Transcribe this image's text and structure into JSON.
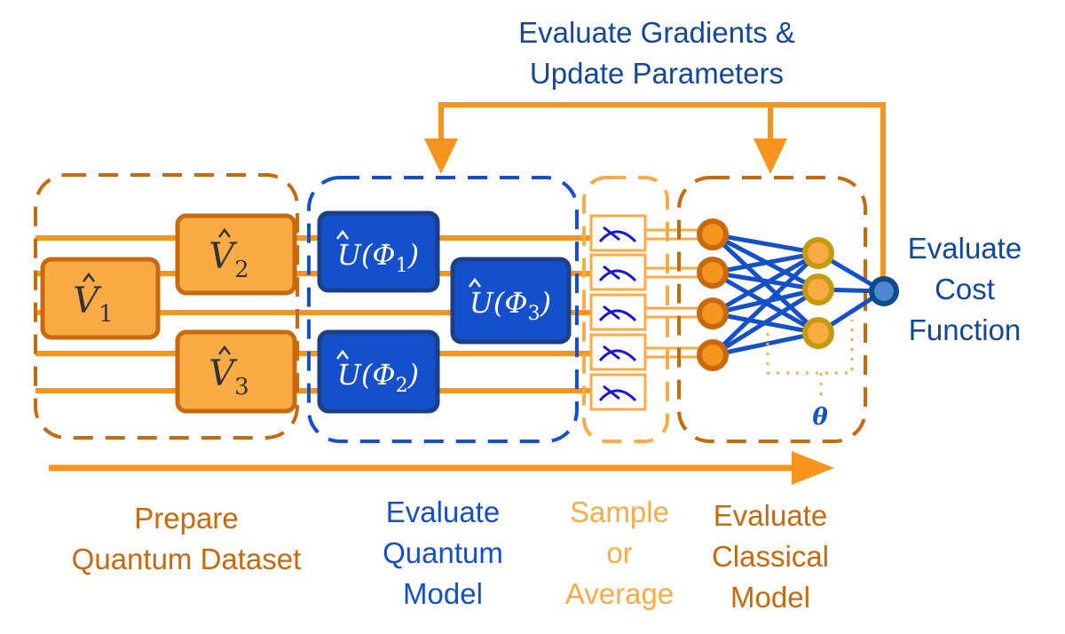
{
  "colors": {
    "orange": "#f7941d",
    "dark_orange": "#c8690e",
    "light_orange": "#fbab44",
    "blue": "#1450cc",
    "dark_blue": "#1d3f86",
    "label_blue": "#12489a",
    "gold": "#c59a0e"
  },
  "top_label": [
    "Evaluate Gradients &",
    "Update Parameters"
  ],
  "cost_label": [
    "Evaluate",
    "Cost",
    "Function"
  ],
  "stages": [
    {
      "lines": [
        "Prepare",
        "Quantum Dataset"
      ],
      "color": "#c8690e"
    },
    {
      "lines": [
        "Evaluate",
        "Quantum",
        "Model"
      ],
      "color": "#1450cc"
    },
    {
      "lines": [
        "Sample",
        "or",
        "Average"
      ],
      "color": "#fbab44"
    },
    {
      "lines": [
        "Evaluate",
        "Classical",
        "Model"
      ],
      "color": "#c8690e"
    }
  ],
  "gates": {
    "v1": {
      "base": "V",
      "sub": "1"
    },
    "v2": {
      "base": "V",
      "sub": "2"
    },
    "v3": {
      "base": "V",
      "sub": "3"
    },
    "u1": {
      "base": "U(Φ",
      "sub": "1",
      "close": ")"
    },
    "u2": {
      "base": "U(Φ",
      "sub": "2",
      "close": ")"
    },
    "u3": {
      "base": "U(Φ",
      "sub": "3",
      "close": ")"
    }
  },
  "theta": "θ",
  "measurement_icon": "meter-icon"
}
